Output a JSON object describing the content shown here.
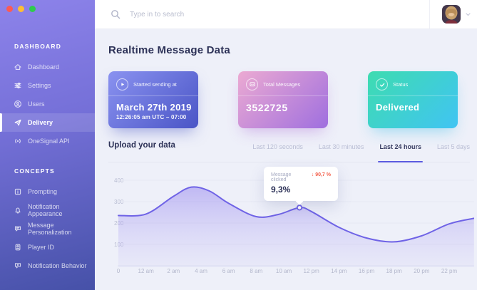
{
  "window": {
    "dot_colors": [
      "#fb5a55",
      "#fdbe33",
      "#2ecb4e"
    ]
  },
  "theme": {
    "accent": "#5b5be0",
    "background": "#eef0f9",
    "sidebar_gradient": [
      "#8d83ea",
      "#4651a8"
    ],
    "delta_negative_color": "#f4604c"
  },
  "topbar": {
    "search_placeholder": "Type in to search"
  },
  "sidebar": {
    "sections": [
      {
        "header": "DASHBOARD",
        "items": [
          {
            "label": "Dashboard",
            "icon": "home-icon",
            "active": false
          },
          {
            "label": "Settings",
            "icon": "sliders-icon",
            "active": false
          },
          {
            "label": "Users",
            "icon": "user-icon",
            "active": false
          },
          {
            "label": "Delivery",
            "icon": "send-icon",
            "active": true
          },
          {
            "label": "OneSignal API",
            "icon": "signal-icon",
            "active": false
          }
        ]
      },
      {
        "header": "CONCEPTS",
        "items": [
          {
            "label": "Prompting",
            "icon": "info-square-icon",
            "active": false
          },
          {
            "label": "Notification Appearance",
            "icon": "bell-icon",
            "active": false
          },
          {
            "label": "Message Personalization",
            "icon": "chat-bubble-icon",
            "active": false
          },
          {
            "label": "Player ID",
            "icon": "id-badge-icon",
            "active": false
          },
          {
            "label": "Notification Behavior",
            "icon": "bubble-pencil-icon",
            "active": false
          }
        ]
      }
    ]
  },
  "main": {
    "title": "Realtime Message Data",
    "cards": [
      {
        "label": "Started sending at",
        "value": "March 27th 2019",
        "sub": "12:26:05 am UTC – 07:00",
        "icon": "play-circle-icon",
        "gradient": [
          "#8a92f0",
          "#4a55c6"
        ]
      },
      {
        "label": "Total Messages",
        "value": "3522725",
        "icon": "message-circle-icon",
        "gradient": [
          "#ecaad2",
          "#9f6fdf"
        ]
      },
      {
        "label": "Status",
        "value": "Delivered",
        "icon": "check-circle-icon",
        "gradient": [
          "#3edcb0",
          "#40c4f3"
        ]
      }
    ],
    "section_title": "Upload your data",
    "filters": [
      {
        "label": "Last 120 seconds",
        "active": false
      },
      {
        "label": "Last 30 minutes",
        "active": false
      },
      {
        "label": "Last 24 hours",
        "active": true
      },
      {
        "label": "Last 5 days",
        "active": false
      }
    ],
    "tooltip": {
      "label": "Message clicked",
      "delta": "↓ 90,7 %",
      "value": "9,3%"
    }
  },
  "chart_data": {
    "type": "area",
    "title": "Upload your data — Last 24 hours",
    "xlabel": "",
    "ylabel": "",
    "x_ticks": [
      "0",
      "12 am",
      "2 am",
      "4 am",
      "6 am",
      "8 am",
      "10 am",
      "12 pm",
      "14 pm",
      "16 pm",
      "18 pm",
      "20 pm",
      "22 pm"
    ],
    "values": [
      235,
      242,
      325,
      360,
      292,
      230,
      262,
      254,
      180,
      130,
      112,
      140,
      196
    ],
    "y_ticks": [
      400,
      300,
      200,
      100
    ],
    "ylim": [
      0,
      430
    ],
    "grid": true,
    "legend": false,
    "line_color": "#6f63e6",
    "fill_color_top": "rgba(146,129,238,0.5)",
    "fill_color_bottom": "rgba(200,194,246,0.16)",
    "highlight": {
      "near_x": "11 am",
      "pos": 6.57,
      "value": 272,
      "label": "Message clicked",
      "delta": "↓ 90,7 %",
      "percent": "9,3%"
    },
    "curve_samples": [
      [
        0,
        235
      ],
      [
        1,
        242
      ],
      [
        2,
        325
      ],
      [
        2.64,
        368
      ],
      [
        3.3,
        350
      ],
      [
        4,
        292
      ],
      [
        5,
        230
      ],
      [
        5.8,
        240
      ],
      [
        6.57,
        272
      ],
      [
        7,
        254
      ],
      [
        8,
        180
      ],
      [
        9,
        130
      ],
      [
        10,
        112
      ],
      [
        11,
        140
      ],
      [
        12,
        196
      ],
      [
        12.9,
        222
      ]
    ]
  }
}
